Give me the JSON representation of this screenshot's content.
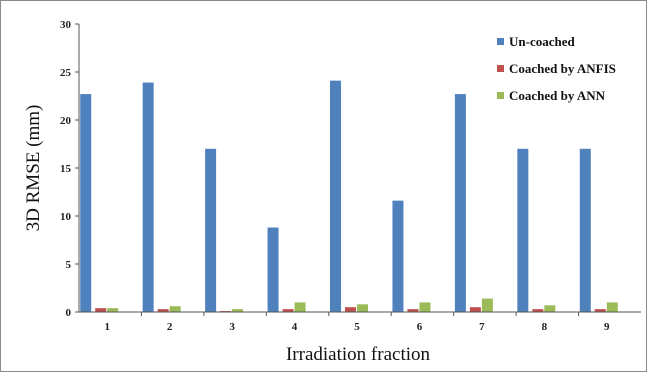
{
  "chart_data": {
    "type": "bar",
    "categories": [
      "1",
      "2",
      "3",
      "4",
      "5",
      "6",
      "7",
      "8",
      "9"
    ],
    "series": [
      {
        "name": "Un-coached",
        "color": "#4f81bd",
        "values": [
          22.7,
          23.9,
          17.0,
          8.8,
          24.1,
          11.6,
          22.7,
          17.0,
          17.0
        ]
      },
      {
        "name": "Coached by ANFIS",
        "color": "#c0504d",
        "values": [
          0.4,
          0.3,
          0.1,
          0.3,
          0.5,
          0.3,
          0.5,
          0.3,
          0.3
        ]
      },
      {
        "name": "Coached by ANN",
        "color": "#9bbb59",
        "values": [
          0.4,
          0.6,
          0.3,
          1.0,
          0.8,
          1.0,
          1.4,
          0.7,
          1.0
        ]
      }
    ],
    "xlabel": "Irradiation fraction",
    "ylabel": "3D RMSE (mm)",
    "ylim": [
      0,
      30
    ],
    "yticks": [
      "0",
      "5",
      "10",
      "15",
      "20",
      "25",
      "30"
    ],
    "grid": false,
    "legend_position": "top-right"
  }
}
